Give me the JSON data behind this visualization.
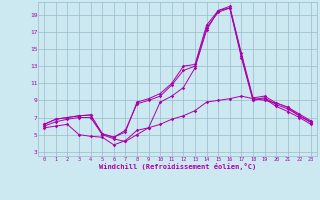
{
  "xlabel": "Windchill (Refroidissement éolien,°C)",
  "background_color": "#cce8f0",
  "grid_color": "#99bbcc",
  "line_color": "#aa00aa",
  "xlim": [
    -0.5,
    23.5
  ],
  "ylim": [
    2.5,
    20.5
  ],
  "xticks": [
    0,
    1,
    2,
    3,
    4,
    5,
    6,
    7,
    8,
    9,
    10,
    11,
    12,
    13,
    14,
    15,
    16,
    17,
    18,
    19,
    20,
    21,
    22,
    23
  ],
  "yticks": [
    3,
    5,
    7,
    9,
    11,
    13,
    15,
    17,
    19
  ],
  "x": [
    0,
    1,
    2,
    3,
    4,
    5,
    6,
    7,
    8,
    9,
    10,
    11,
    12,
    13,
    14,
    15,
    16,
    17,
    18,
    19,
    20,
    21,
    22,
    23
  ],
  "line1": [
    6.2,
    6.8,
    7.0,
    7.2,
    7.3,
    5.1,
    4.7,
    5.3,
    8.8,
    9.2,
    9.8,
    11.0,
    13.0,
    13.2,
    17.8,
    19.5,
    20.0,
    14.5,
    9.3,
    9.5,
    8.7,
    8.2,
    7.4,
    6.6
  ],
  "line2": [
    6.2,
    6.8,
    7.0,
    7.2,
    7.3,
    5.1,
    4.7,
    5.5,
    8.6,
    9.0,
    9.5,
    10.8,
    12.5,
    13.0,
    17.5,
    19.3,
    19.8,
    14.2,
    9.1,
    9.3,
    8.5,
    8.0,
    7.2,
    6.4
  ],
  "line3": [
    6.0,
    6.5,
    6.8,
    7.0,
    7.0,
    5.0,
    4.5,
    4.2,
    5.0,
    5.8,
    8.8,
    9.5,
    10.5,
    12.8,
    17.2,
    19.5,
    19.8,
    14.0,
    9.0,
    9.2,
    8.3,
    7.7,
    7.0,
    6.2
  ],
  "line4": [
    5.8,
    6.0,
    6.2,
    5.0,
    4.8,
    4.7,
    3.8,
    4.3,
    5.5,
    5.8,
    6.2,
    6.8,
    7.2,
    7.8,
    8.8,
    9.0,
    9.2,
    9.5,
    9.2,
    9.0,
    8.7,
    8.2,
    7.2,
    6.5
  ]
}
